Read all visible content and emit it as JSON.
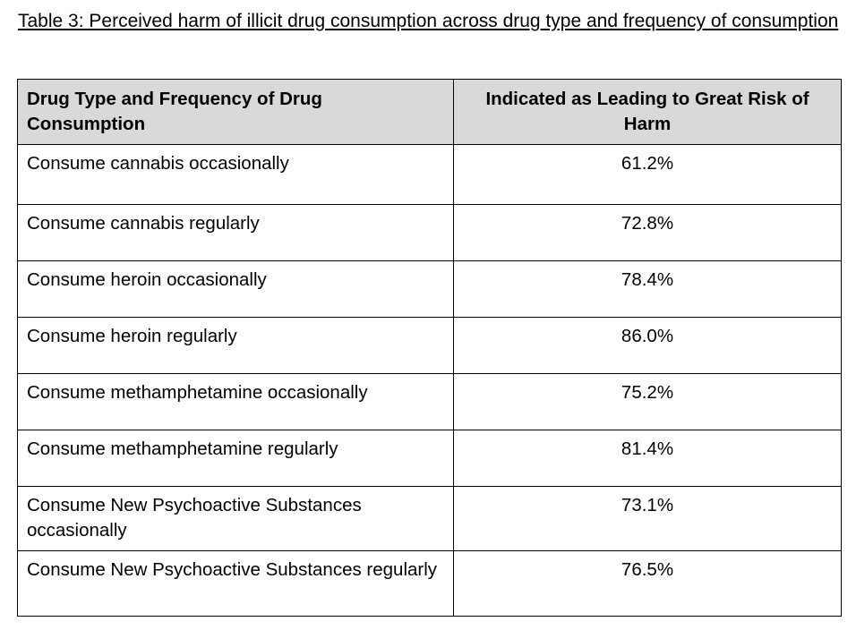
{
  "caption": "Table 3: Perceived harm of illicit drug consumption across drug type and frequency of consumption",
  "table": {
    "headers": [
      "Drug Type and Frequency of Drug Consumption",
      "Indicated as Leading to Great Risk of Harm"
    ],
    "rows": [
      {
        "label": "Consume cannabis occasionally",
        "value": "61.2%"
      },
      {
        "label": "Consume cannabis regularly",
        "value": "72.8%"
      },
      {
        "label": "Consume heroin occasionally",
        "value": "78.4%"
      },
      {
        "label": "Consume heroin regularly",
        "value": "86.0%"
      },
      {
        "label": "Consume methamphetamine occasionally",
        "value": "75.2%"
      },
      {
        "label": "Consume methamphetamine regularly",
        "value": "81.4%"
      },
      {
        "label": "Consume New Psychoactive Substances occasionally",
        "value": "73.1%"
      },
      {
        "label": "Consume New Psychoactive Substances regularly",
        "value": "76.5%"
      }
    ]
  },
  "chart_data": {
    "type": "table",
    "columns": [
      "Drug Type and Frequency of Drug Consumption",
      "Indicated as Leading to Great Risk of Harm"
    ],
    "categories": [
      "Consume cannabis occasionally",
      "Consume cannabis regularly",
      "Consume heroin occasionally",
      "Consume heroin regularly",
      "Consume methamphetamine occasionally",
      "Consume methamphetamine regularly",
      "Consume New Psychoactive Substances occasionally",
      "Consume New Psychoactive Substances regularly"
    ],
    "values": [
      61.2,
      72.8,
      78.4,
      86.0,
      75.2,
      81.4,
      73.1,
      76.5
    ],
    "title": "Table 3: Perceived harm of illicit drug consumption across drug type and frequency of consumption"
  },
  "colors": {
    "header_background": "#d9d9d9",
    "border": "#000000",
    "text": "#000000"
  }
}
